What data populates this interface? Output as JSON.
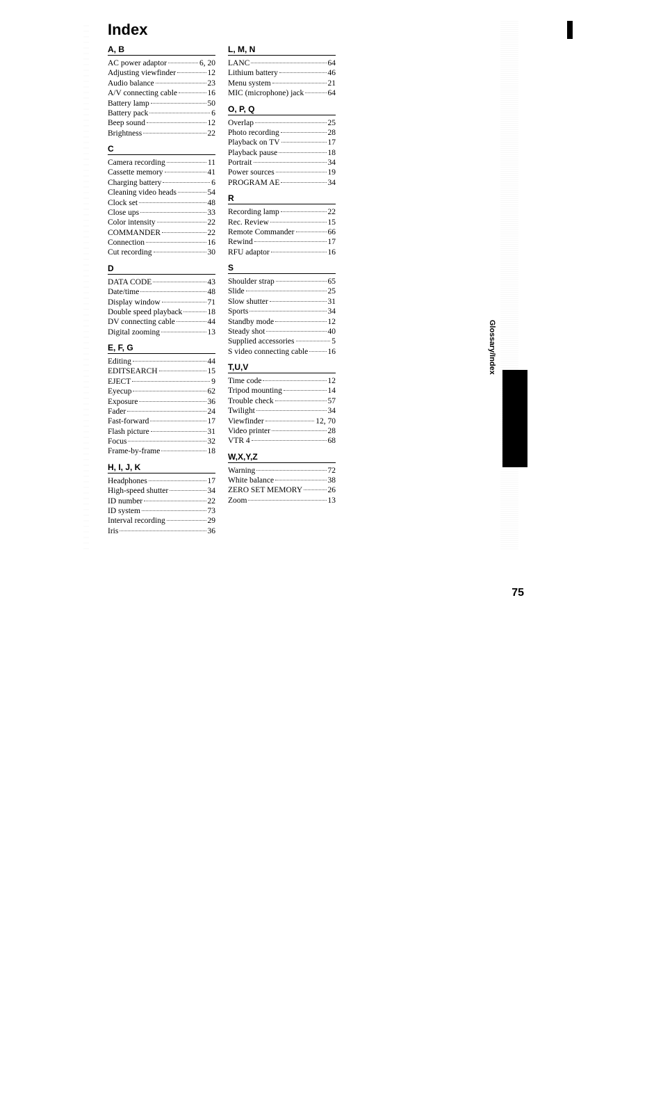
{
  "title": "Index",
  "page_number": "75",
  "side_tab": "Glossary/Index",
  "columns": [
    {
      "sections": [
        {
          "heading": "A, B",
          "entries": [
            {
              "term": "AC power adaptor",
              "page": "6, 20"
            },
            {
              "term": "Adjusting viewfinder",
              "page": "12"
            },
            {
              "term": "Audio balance",
              "page": "23"
            },
            {
              "term": "A/V connecting cable",
              "page": "16"
            },
            {
              "term": "Battery lamp",
              "page": "50"
            },
            {
              "term": "Battery pack",
              "page": "6"
            },
            {
              "term": "Beep sound",
              "page": "12"
            },
            {
              "term": "Brightness",
              "page": "22"
            }
          ]
        },
        {
          "heading": "C",
          "entries": [
            {
              "term": "Camera recording",
              "page": "11"
            },
            {
              "term": "Cassette memory",
              "page": "41"
            },
            {
              "term": "Charging battery",
              "page": "6"
            },
            {
              "term": "Cleaning video heads",
              "page": "54"
            },
            {
              "term": "Clock set",
              "page": "48"
            },
            {
              "term": "Close ups",
              "page": "33"
            },
            {
              "term": "Color intensity",
              "page": "22"
            },
            {
              "term": "COMMANDER",
              "page": "22"
            },
            {
              "term": "Connection",
              "page": "16"
            },
            {
              "term": "Cut recording",
              "page": "30"
            }
          ]
        },
        {
          "heading": "D",
          "entries": [
            {
              "term": "DATA CODE",
              "page": "43"
            },
            {
              "term": "Date/time",
              "page": "48"
            },
            {
              "term": "Display window",
              "page": "71"
            },
            {
              "term": "Double speed playback",
              "page": "18"
            },
            {
              "term": "DV connecting cable",
              "page": "44"
            },
            {
              "term": "Digital zooming",
              "page": "13"
            }
          ]
        },
        {
          "heading": "E, F, G",
          "entries": [
            {
              "term": "Editing",
              "page": "44"
            },
            {
              "term": "EDITSEARCH",
              "page": "15"
            },
            {
              "term": "EJECT",
              "page": "9"
            },
            {
              "term": "Eyecup",
              "page": "62"
            },
            {
              "term": "Exposure",
              "page": "36"
            },
            {
              "term": "Fader",
              "page": "24"
            },
            {
              "term": "Fast-forward",
              "page": "17"
            },
            {
              "term": "Flash picture",
              "page": "31"
            },
            {
              "term": "Focus",
              "page": "32"
            },
            {
              "term": "Frame-by-frame",
              "page": "18"
            }
          ]
        },
        {
          "heading": "H, I, J, K",
          "entries": [
            {
              "term": "Headphones",
              "page": "17"
            },
            {
              "term": "High-speed shutter",
              "page": "34"
            },
            {
              "term": "ID number",
              "page": "22"
            },
            {
              "term": "ID system",
              "page": "73"
            },
            {
              "term": "Interval recording",
              "page": "29"
            },
            {
              "term": "Iris",
              "page": "36"
            }
          ]
        }
      ]
    },
    {
      "sections": [
        {
          "heading": "L, M, N",
          "entries": [
            {
              "term": "LANC",
              "page": "64"
            },
            {
              "term": "Lithium battery",
              "page": "46"
            },
            {
              "term": "Menu system",
              "page": "21"
            },
            {
              "term": "MIC (microphone) jack",
              "page": "64"
            }
          ]
        },
        {
          "heading": "O, P, Q",
          "entries": [
            {
              "term": "Overlap",
              "page": "25"
            },
            {
              "term": "Photo recording",
              "page": "28"
            },
            {
              "term": "Playback on TV",
              "page": "17"
            },
            {
              "term": "Playback pause",
              "page": "18"
            },
            {
              "term": "Portrait",
              "page": "34"
            },
            {
              "term": "Power sources",
              "page": "19"
            },
            {
              "term": "PROGRAM AE",
              "page": "34"
            }
          ]
        },
        {
          "heading": "R",
          "entries": [
            {
              "term": "Recording lamp",
              "page": "22"
            },
            {
              "term": "Rec. Review",
              "page": "15"
            },
            {
              "term": "Remote Commander",
              "page": "66"
            },
            {
              "term": "Rewind",
              "page": "17"
            },
            {
              "term": "RFU adaptor",
              "page": "16"
            }
          ]
        },
        {
          "heading": "S",
          "entries": [
            {
              "term": "Shoulder strap",
              "page": "65"
            },
            {
              "term": "Slide",
              "page": "25"
            },
            {
              "term": "Slow shutter",
              "page": "31"
            },
            {
              "term": "Sports",
              "page": "34"
            },
            {
              "term": "Standby mode",
              "page": "12"
            },
            {
              "term": "Steady shot",
              "page": "40"
            },
            {
              "term": "Supplied accessories",
              "page": "5"
            },
            {
              "term": "S video connecting cable",
              "page": "16"
            }
          ]
        },
        {
          "heading": "T,U,V",
          "entries": [
            {
              "term": "Time code",
              "page": "12"
            },
            {
              "term": "Tripod mounting",
              "page": "14"
            },
            {
              "term": "Trouble check",
              "page": "57"
            },
            {
              "term": "Twilight",
              "page": "34"
            },
            {
              "term": "Viewfinder",
              "page": "12, 70"
            },
            {
              "term": "Video printer",
              "page": "28"
            },
            {
              "term": "VTR 4",
              "page": "68"
            }
          ]
        },
        {
          "heading": "W,X,Y,Z",
          "entries": [
            {
              "term": "Warning",
              "page": "72"
            },
            {
              "term": "White balance",
              "page": "38"
            },
            {
              "term": "ZERO SET MEMORY",
              "page": "26"
            },
            {
              "term": "Zoom",
              "page": "13"
            }
          ]
        }
      ]
    }
  ]
}
